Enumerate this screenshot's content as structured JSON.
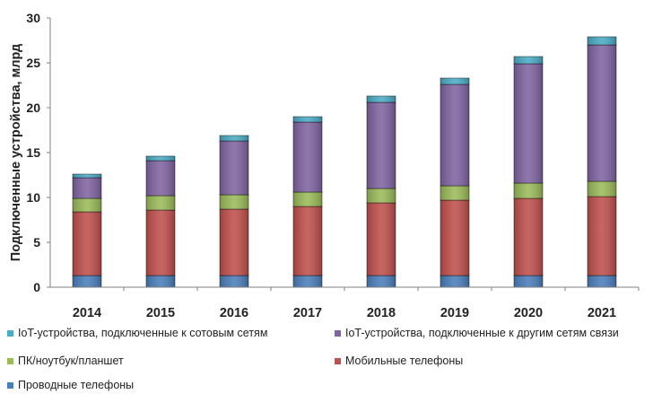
{
  "chart_data": {
    "type": "bar",
    "stacked": true,
    "title": "",
    "xlabel": "",
    "ylabel": "Подключенные устройства, млрд",
    "ylim": [
      0,
      30
    ],
    "yticks": [
      "0",
      "5",
      "10",
      "15",
      "20",
      "25",
      "30"
    ],
    "categories": [
      "2014",
      "2015",
      "2016",
      "2017",
      "2018",
      "2019",
      "2020",
      "2021"
    ],
    "series": [
      {
        "name": "Проводные телефоны",
        "color": "#4a7ebb",
        "values": [
          1.3,
          1.3,
          1.3,
          1.3,
          1.3,
          1.3,
          1.3,
          1.3
        ]
      },
      {
        "name": "Мобильные телефоны",
        "color": "#c0504d",
        "values": [
          7.1,
          7.3,
          7.4,
          7.7,
          8.1,
          8.4,
          8.6,
          8.8
        ]
      },
      {
        "name": "ПК/ноутбук/планшет",
        "color": "#9bbb59",
        "values": [
          1.5,
          1.6,
          1.6,
          1.6,
          1.6,
          1.6,
          1.7,
          1.7
        ]
      },
      {
        "name": "IoT-устройства, подключенные к другим сетям связи",
        "color": "#8064a2",
        "values": [
          2.3,
          3.9,
          6.0,
          7.8,
          9.6,
          11.3,
          13.3,
          15.2
        ]
      },
      {
        "name": "IoT-устройства, подключенные к сотовым сетям",
        "color": "#4bacc6",
        "values": [
          0.4,
          0.5,
          0.6,
          0.6,
          0.7,
          0.7,
          0.8,
          0.9
        ]
      }
    ],
    "grid": false,
    "legend_position": "bottom"
  }
}
